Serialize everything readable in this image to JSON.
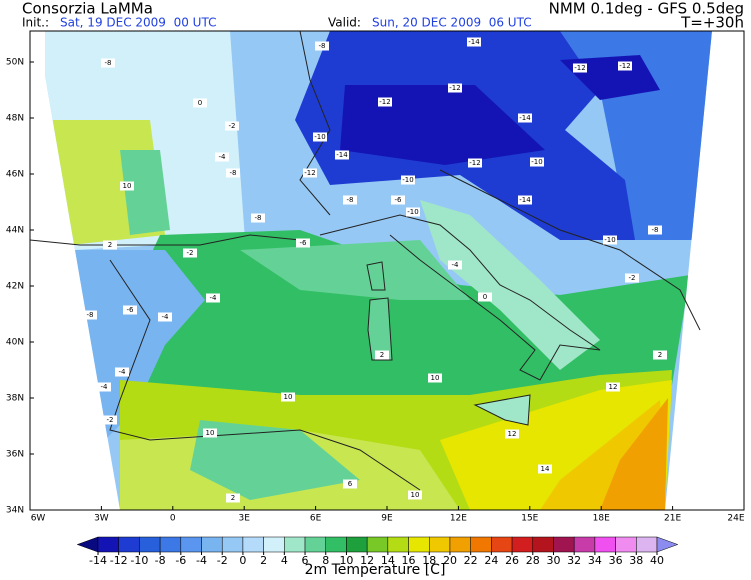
{
  "header": {
    "title": "Consorzia LaMMa",
    "init_label": "Init.:",
    "init_date": "Sat, 19 DEC 2009  00 UTC",
    "valid_label": "Valid:",
    "valid_date": "Sun, 20 DEC 2009  06 UTC",
    "model": "NMM 0.1deg - GFS 0.5deg",
    "lead": "T=+30h"
  },
  "map": {
    "lat_labels": [
      "50N",
      "48N",
      "46N",
      "44N",
      "42N",
      "40N",
      "38N",
      "36N",
      "34N"
    ],
    "lon_labels": [
      "6W",
      "3W",
      "0",
      "3E",
      "6E",
      "9E",
      "12E",
      "15E",
      "18E",
      "21E",
      "24E"
    ],
    "labels": [
      -8,
      -14,
      -12,
      -12,
      -8,
      -12,
      -12,
      -14,
      -10,
      -14,
      -12,
      -10,
      -12,
      -8,
      -4,
      -2,
      0,
      10,
      -10,
      -8,
      -6,
      -10,
      -8,
      -6,
      -14,
      -10,
      -8,
      -2,
      -4,
      0,
      2,
      -2,
      -8,
      -4,
      -4,
      -6,
      2,
      10,
      -4,
      -4,
      10,
      -2,
      10,
      12,
      14,
      12,
      2,
      2,
      6,
      10
    ]
  },
  "colorbar": {
    "title": "2m Temperature [C]",
    "ticks": [
      -14,
      -12,
      -10,
      -8,
      -6,
      -4,
      -2,
      0,
      2,
      4,
      6,
      8,
      10,
      12,
      14,
      16,
      18,
      20,
      22,
      24,
      26,
      28,
      30,
      32,
      34,
      36,
      38,
      40
    ],
    "colors": [
      "#0a0a80",
      "#1414b4",
      "#1e3cd2",
      "#2860dc",
      "#3c78e6",
      "#5a96f0",
      "#78b4f0",
      "#96c8f5",
      "#b4dcfa",
      "#d2f0fa",
      "#a0e6c8",
      "#64d296",
      "#32be64",
      "#1ea03c",
      "#78c828",
      "#b4dc14",
      "#e6e600",
      "#f0c800",
      "#f0a000",
      "#f07800",
      "#e64614",
      "#d21e1e",
      "#b4141e",
      "#a01450",
      "#c83caa",
      "#f050f0",
      "#f08cf0",
      "#dcb4f0",
      "#b4a0f0",
      "#8c8cf0"
    ]
  }
}
